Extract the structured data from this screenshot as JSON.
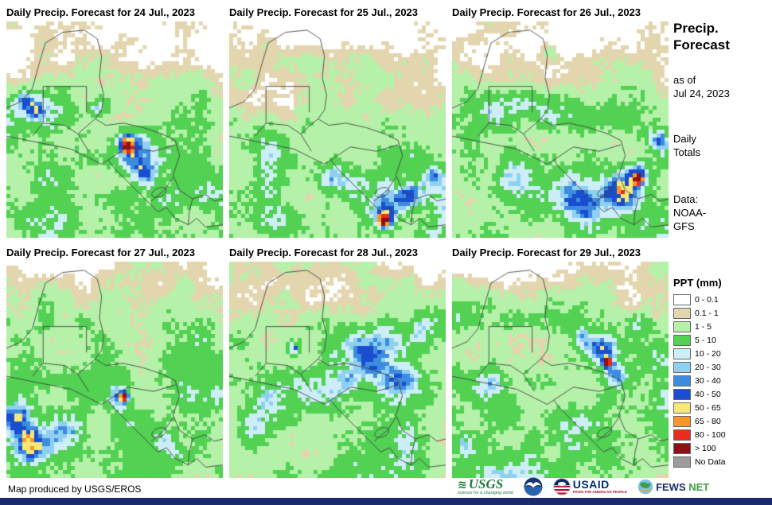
{
  "panels": [
    {
      "title": "Daily Precip. Forecast for 24 Jul., 2023",
      "seed": 11,
      "dry": 0.52,
      "dryH": 0.42,
      "rain_cells": [
        [
          0.6,
          0.6,
          0.09,
          0.33
        ],
        [
          0.64,
          0.7,
          0.06,
          0.3
        ],
        [
          0.55,
          0.55,
          0.045,
          0.38
        ],
        [
          0.56,
          0.585,
          0.022,
          0.5
        ],
        [
          0.09,
          0.36,
          0.05,
          0.38
        ],
        [
          0.13,
          0.42,
          0.04,
          0.28
        ],
        [
          0.75,
          0.82,
          0.09,
          0.22
        ],
        [
          0.42,
          0.4,
          0.05,
          0.25
        ]
      ]
    },
    {
      "title": "Daily Precip. Forecast for 25 Jul., 2023",
      "seed": 22,
      "dry": 0.5,
      "dryH": 0.5,
      "rain_cells": [
        [
          0.58,
          0.78,
          0.09,
          0.3
        ],
        [
          0.72,
          0.84,
          0.08,
          0.38
        ],
        [
          0.72,
          0.92,
          0.035,
          0.6
        ],
        [
          0.84,
          0.8,
          0.06,
          0.33
        ],
        [
          0.48,
          0.72,
          0.07,
          0.22
        ],
        [
          0.95,
          0.72,
          0.05,
          0.28
        ]
      ]
    },
    {
      "title": "Daily Precip. Forecast for 26 Jul., 2023",
      "seed": 33,
      "dry": 0.5,
      "dryH": 0.4,
      "rain_cells": [
        [
          0.85,
          0.7,
          0.065,
          0.4
        ],
        [
          0.78,
          0.78,
          0.07,
          0.32
        ],
        [
          0.86,
          0.73,
          0.022,
          0.55
        ],
        [
          0.6,
          0.84,
          0.1,
          0.22
        ],
        [
          0.3,
          0.72,
          0.1,
          0.18
        ],
        [
          0.45,
          0.14,
          0.035,
          0.33
        ],
        [
          0.95,
          0.55,
          0.05,
          0.28
        ]
      ]
    },
    {
      "title": "Daily Precip. Forecast for 27 Jul., 2023",
      "seed": 44,
      "dry": 0.45,
      "dryH": 0.34,
      "rain_cells": [
        [
          0.13,
          0.85,
          0.08,
          0.35
        ],
        [
          0.05,
          0.72,
          0.06,
          0.3
        ],
        [
          0.52,
          0.63,
          0.05,
          0.32
        ],
        [
          0.545,
          0.625,
          0.02,
          0.5
        ],
        [
          0.3,
          0.78,
          0.08,
          0.22
        ],
        [
          0.75,
          0.9,
          0.07,
          0.2
        ]
      ]
    },
    {
      "title": "Daily Precip. Forecast for 28 Jul., 2023",
      "seed": 55,
      "dry": 0.38,
      "dryH": 0.3,
      "rain_cells": [
        [
          0.66,
          0.44,
          0.13,
          0.24
        ],
        [
          0.8,
          0.56,
          0.1,
          0.26
        ],
        [
          0.52,
          0.6,
          0.09,
          0.2
        ],
        [
          0.3,
          0.4,
          0.028,
          0.38
        ],
        [
          0.14,
          0.78,
          0.09,
          0.22
        ],
        [
          0.88,
          0.3,
          0.06,
          0.22
        ]
      ]
    },
    {
      "title": "Daily Precip. Forecast for 29 Jul., 2023",
      "seed": 66,
      "dry": 0.38,
      "dryH": 0.28,
      "rain_cells": [
        [
          0.69,
          0.42,
          0.065,
          0.38
        ],
        [
          0.75,
          0.53,
          0.055,
          0.35
        ],
        [
          0.72,
          0.465,
          0.02,
          0.55
        ],
        [
          0.18,
          0.58,
          0.08,
          0.22
        ],
        [
          0.06,
          0.84,
          0.06,
          0.28
        ],
        [
          0.87,
          0.28,
          0.05,
          0.24
        ],
        [
          0.6,
          0.35,
          0.05,
          0.26
        ]
      ]
    }
  ],
  "sidebar": {
    "title": "Precip.\nForecast",
    "as_of": "as of\nJul 24, 2023",
    "totals": "Daily\nTotals",
    "data_source": "Data:\nNOAA-\nGFS"
  },
  "legend": {
    "title": "PPT (mm)",
    "entries": [
      {
        "label": "0 - 0.1",
        "color": "#ffffff"
      },
      {
        "label": "0.1 - 1",
        "color": "#e3d5ae"
      },
      {
        "label": "1 - 5",
        "color": "#b5f1a9"
      },
      {
        "label": "5 - 10",
        "color": "#52d153"
      },
      {
        "label": "10 - 20",
        "color": "#cdeef7"
      },
      {
        "label": "20 - 30",
        "color": "#8fd0f2"
      },
      {
        "label": "30 - 40",
        "color": "#3d8ce0"
      },
      {
        "label": "40 - 50",
        "color": "#1a4ed0"
      },
      {
        "label": "50 - 65",
        "color": "#f6e878"
      },
      {
        "label": "65 - 80",
        "color": "#f79726"
      },
      {
        "label": "80 - 100",
        "color": "#ea2b1f"
      },
      {
        "label": "> 100",
        "color": "#8e1014"
      },
      {
        "label": "No Data",
        "color": "#9c9c9c"
      }
    ]
  },
  "footer": {
    "credit": "Map produced by USGS/EROS",
    "usgs_wave": "≋",
    "usgs_name": "USGS",
    "usgs_tagline": "science for a changing world",
    "usaid_name": "USAID",
    "usaid_tagline": "FROM THE AMERICAN PEOPLE",
    "fews_name1": "FEWS",
    "fews_name2": "NET"
  }
}
